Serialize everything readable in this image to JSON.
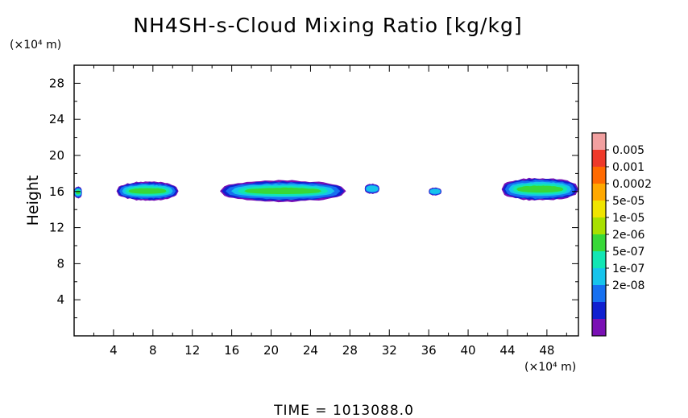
{
  "chart_data": {
    "type": "heatmap",
    "title": "NH4SH-s-Cloud Mixing Ratio [kg/kg]",
    "ylabel": "Height",
    "y_unit": "(×10⁴ m)",
    "x_unit": "(×10⁴ m)",
    "xlim": [
      0,
      51.2
    ],
    "ylim": [
      0,
      30
    ],
    "x_ticks": [
      "4",
      "8",
      "12",
      "16",
      "20",
      "24",
      "28",
      "32",
      "36",
      "40",
      "44",
      "48"
    ],
    "y_ticks": [
      "4",
      "8",
      "12",
      "16",
      "20",
      "24",
      "28"
    ],
    "colorbar": {
      "labels": [
        "0.005",
        "0.001",
        "0.0002",
        "5e-05",
        "1e-05",
        "2e-06",
        "5e-07",
        "1e-07",
        "2e-08"
      ],
      "colors": [
        "#f2a0a0",
        "#ee3a2a",
        "#ff6a00",
        "#ffa800",
        "#f0e400",
        "#a8e000",
        "#38d838",
        "#12e6b4",
        "#16c4ec",
        "#1670f0",
        "#1020d0",
        "#7a10b4"
      ]
    },
    "clouds": [
      {
        "x0": 0,
        "x1": 0.8,
        "top": 16.5,
        "bottom": 15.3,
        "core": 0.2
      },
      {
        "x0": 4.3,
        "x1": 10.6,
        "top": 17.0,
        "bottom": 15.1,
        "core": 0.6
      },
      {
        "x0": 14.8,
        "x1": 27.6,
        "top": 17.1,
        "bottom": 15.0,
        "core": 0.6
      },
      {
        "x0": 29.5,
        "x1": 31.0,
        "top": 16.8,
        "bottom": 15.8,
        "core": 0.0
      },
      {
        "x0": 36.0,
        "x1": 37.3,
        "top": 16.4,
        "bottom": 15.6,
        "core": 0.0
      },
      {
        "x0": 43.4,
        "x1": 51.2,
        "top": 17.4,
        "bottom": 15.1,
        "core": 0.6
      }
    ],
    "time_label": "TIME = 1013088.0"
  }
}
